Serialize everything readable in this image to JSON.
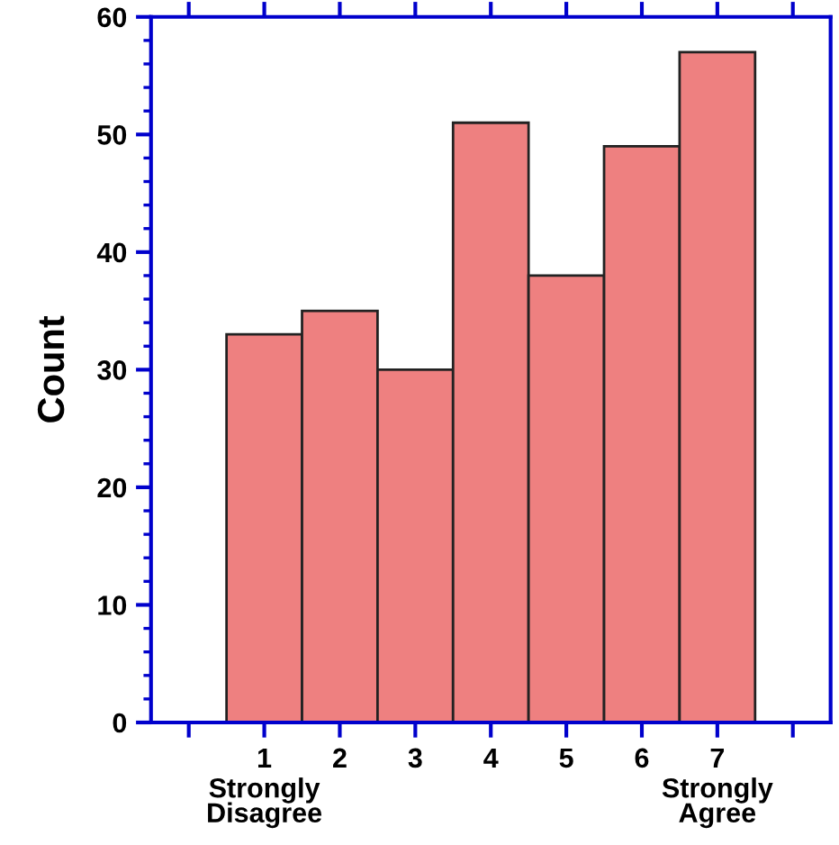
{
  "chart_data": {
    "type": "histogram",
    "ylabel": "Count",
    "bins": [
      0.5,
      1.5,
      2.5,
      3.5,
      4.5,
      5.5,
      6.5,
      7.5
    ],
    "values": [
      33,
      35,
      30,
      51,
      38,
      49,
      57
    ],
    "color": "#ee8080",
    "xlim": [
      -0.5,
      8.5
    ],
    "xticks": [
      {
        "value": 0,
        "label": null
      },
      1,
      2,
      3,
      4,
      5,
      6,
      7,
      {
        "value": 8,
        "label": null
      }
    ],
    "ylim": [
      0,
      60
    ],
    "yticks": [
      0,
      10,
      20,
      30,
      40,
      50,
      60
    ],
    "annotations": [
      "Strongly\nDisagree",
      "Strongly\nAgree"
    ],
    "grid": false,
    "legend": false
  }
}
